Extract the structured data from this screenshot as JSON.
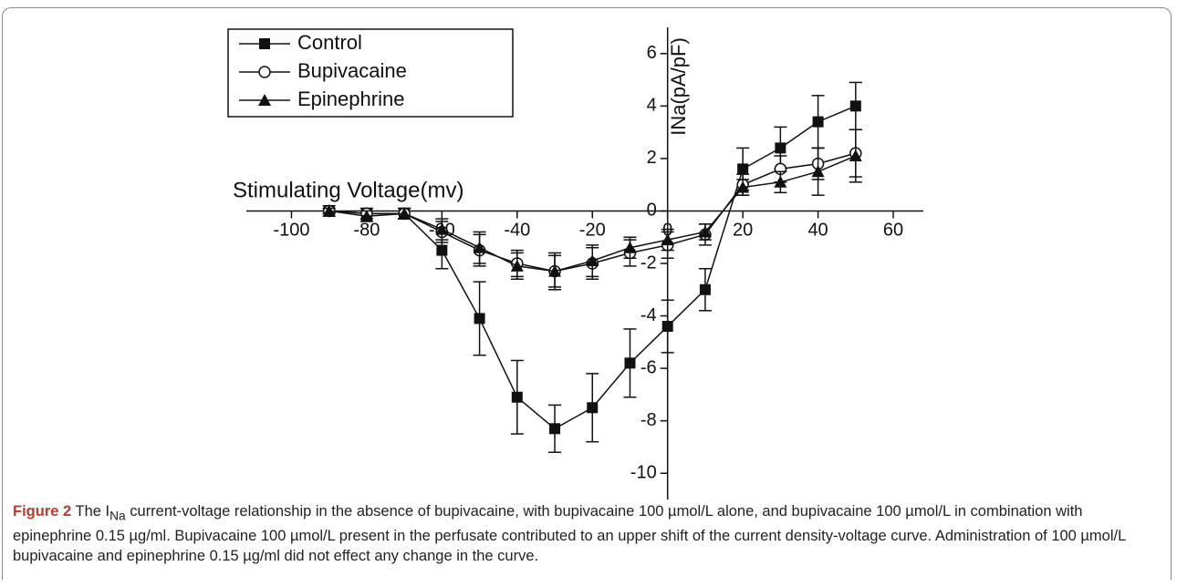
{
  "chart_data": {
    "type": "line",
    "x_label": "Stimulating Voltage(mv)",
    "y_label": "INa(pA/pF)",
    "x": [
      -90,
      -80,
      -70,
      -60,
      -50,
      -40,
      -30,
      -20,
      -10,
      0,
      10,
      20,
      30,
      40,
      50
    ],
    "series": [
      {
        "name": "Control",
        "color": "#111111",
        "marker": "square",
        "values": [
          0,
          -0.1,
          -0.1,
          -1.5,
          -4.1,
          -7.1,
          -8.3,
          -7.5,
          -5.8,
          -4.4,
          -3.0,
          1.6,
          2.4,
          3.4,
          4.0
        ],
        "errors": [
          0.2,
          0.2,
          0.2,
          0.7,
          1.4,
          1.4,
          0.9,
          1.3,
          1.3,
          1.0,
          0.8,
          0.8,
          0.8,
          1.0,
          0.9
        ]
      },
      {
        "name": "Bupivacaine",
        "color": "#111111",
        "marker": "circle",
        "values": [
          0,
          -0.1,
          -0.1,
          -0.8,
          -1.5,
          -2.0,
          -2.3,
          -2.0,
          -1.6,
          -1.3,
          -0.9,
          1.0,
          1.6,
          1.8,
          2.2
        ],
        "errors": [
          0.1,
          0.2,
          0.2,
          0.4,
          0.6,
          0.5,
          0.6,
          0.6,
          0.5,
          0.5,
          0.4,
          0.4,
          0.5,
          0.6,
          0.9
        ]
      },
      {
        "name": "Epinephrine",
        "color": "#111111",
        "marker": "triangle",
        "values": [
          0,
          -0.2,
          -0.1,
          -0.7,
          -1.4,
          -2.1,
          -2.3,
          -1.9,
          -1.4,
          -1.1,
          -0.8,
          0.9,
          1.1,
          1.5,
          2.1
        ],
        "errors": [
          0.1,
          0.2,
          0.2,
          0.4,
          0.6,
          0.5,
          0.7,
          0.6,
          0.4,
          0.4,
          0.3,
          0.3,
          0.4,
          0.9,
          1.0
        ]
      }
    ],
    "xlim": [
      -112,
      68
    ],
    "xticks": [
      -100,
      -80,
      -60,
      -40,
      -20,
      0,
      20,
      40,
      60
    ],
    "ylim": [
      -11,
      7
    ],
    "yticks": [
      -10,
      -8,
      -6,
      -4,
      -2,
      0,
      2,
      4,
      6
    ],
    "legend": "upper left",
    "grid": false
  },
  "caption": {
    "label": "Figure 2",
    "text_before": "The I",
    "subscript": "Na",
    "text_after": "current-voltage relationship in the absence of bupivacaine, with bupivacaine 100 µmol/L alone, and bupivacaine 100 µmol/L in combination with epinephrine 0.15 µg/ml. Bupivacaine 100 µmol/L present in the perfusate contributed to an upper shift of the current density-voltage curve. Administration of 100 µmol/L bupivacaine and epinephrine 0.15 µg/ml did not effect any change in the curve."
  }
}
